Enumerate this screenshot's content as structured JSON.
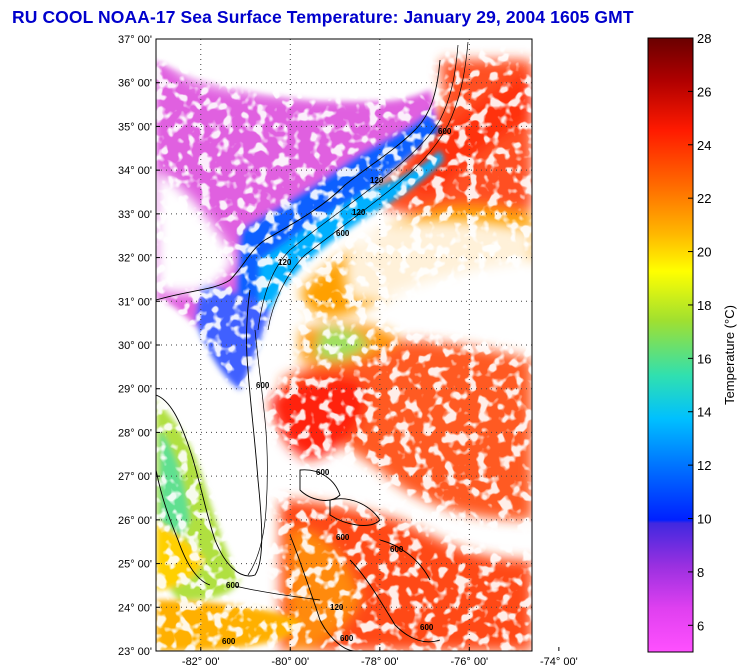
{
  "title": "RU COOL  NOAA-17  Sea Surface Temperature:  January 29, 2004 1605 GMT",
  "map": {
    "lat_labels": [
      "37° 00'",
      "36° 00'",
      "35° 00'",
      "34° 00'",
      "33° 00'",
      "32° 00'",
      "31° 00'",
      "30° 00'",
      "29° 00'",
      "28° 00'",
      "27° 00'",
      "26° 00'",
      "25° 00'",
      "24° 00'",
      "23° 00'"
    ],
    "lon_labels": [
      "-82° 00'",
      "-80° 00'",
      "-78° 00'",
      "-76° 00'",
      "-74° 00'"
    ],
    "lat_range": [
      23,
      37
    ],
    "lon_range": [
      -83,
      -74.6
    ],
    "isobaths": [
      "120",
      "600"
    ]
  },
  "colorbar": {
    "label": "Temperature (°C)",
    "ticks": [
      "28",
      "26",
      "24",
      "22",
      "20",
      "18",
      "16",
      "14",
      "12",
      "10",
      "8",
      "6"
    ],
    "range": [
      5,
      28
    ],
    "colors": [
      "#7a0000",
      "#cc0000",
      "#ff2000",
      "#ff7000",
      "#ffc000",
      "#ffff00",
      "#80e040",
      "#20e0c0",
      "#00a0ff",
      "#0040ff",
      "#3020e0",
      "#a030e0",
      "#ff40ff"
    ]
  }
}
